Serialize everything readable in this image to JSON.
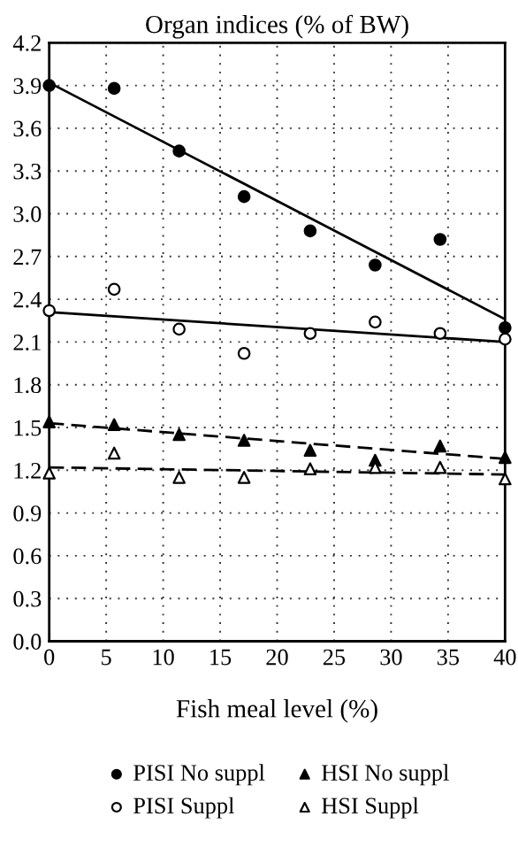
{
  "chart_data": {
    "type": "scatter",
    "title": "Organ indices (% of BW)",
    "xlabel": "Fish meal level (%)",
    "series": [
      {
        "name": "PISI No suppl",
        "marker": "circle",
        "color": "#000000",
        "x": [
          0,
          5.7,
          11.4,
          17.1,
          22.9,
          28.6,
          34.3,
          40
        ],
        "values": [
          3.9,
          3.88,
          3.44,
          3.12,
          2.88,
          2.64,
          2.82,
          2.2
        ]
      },
      {
        "name": "PISI Suppl",
        "marker": "circle",
        "color": "#ffffff",
        "x": [
          0,
          5.7,
          11.4,
          17.1,
          22.9,
          28.6,
          34.3,
          40
        ],
        "values": [
          2.32,
          2.47,
          2.19,
          2.02,
          2.16,
          2.24,
          2.16,
          2.12
        ]
      },
      {
        "name": "HSI No suppl",
        "marker": "triangle",
        "color": "#000000",
        "x": [
          0,
          5.7,
          11.4,
          17.1,
          22.9,
          28.6,
          34.3,
          40
        ],
        "values": [
          1.54,
          1.52,
          1.45,
          1.41,
          1.34,
          1.27,
          1.37,
          1.29
        ]
      },
      {
        "name": "HSI Suppl",
        "marker": "triangle",
        "color": "#ffffff",
        "x": [
          0,
          5.7,
          11.4,
          17.1,
          22.9,
          28.6,
          34.3,
          40
        ],
        "values": [
          1.18,
          1.32,
          1.15,
          1.15,
          1.21,
          1.22,
          1.22,
          1.14
        ]
      },
      {
        "type": "line",
        "line_style": "solid",
        "color": "#000000",
        "x": [
          0,
          40
        ],
        "values": [
          3.92,
          2.26
        ]
      },
      {
        "type": "line",
        "line_style": "solid",
        "color": "#000000",
        "x": [
          0,
          40
        ],
        "values": [
          2.31,
          2.1
        ]
      },
      {
        "type": "line",
        "line_style": "dashed",
        "color": "#000000",
        "x": [
          0,
          40
        ],
        "values": [
          1.53,
          1.28
        ]
      },
      {
        "type": "line",
        "line_style": "dashed",
        "color": "#000000",
        "x": [
          0,
          40
        ],
        "values": [
          1.22,
          1.17
        ]
      }
    ],
    "xlim": [
      0,
      40
    ],
    "xticks": [
      0,
      5,
      10,
      15,
      20,
      25,
      30,
      35,
      40
    ],
    "ylim": [
      0,
      4.2
    ],
    "yticks": [
      {
        "value": 0,
        "label": "0.0"
      },
      0.3,
      0.6,
      0.9,
      1.2,
      1.5,
      1.8,
      2.1,
      2.4,
      2.7,
      {
        "value": 3,
        "label": "3.0"
      },
      3.3,
      3.6,
      3.9,
      4.2
    ],
    "grid": true,
    "legend": "bottom"
  }
}
